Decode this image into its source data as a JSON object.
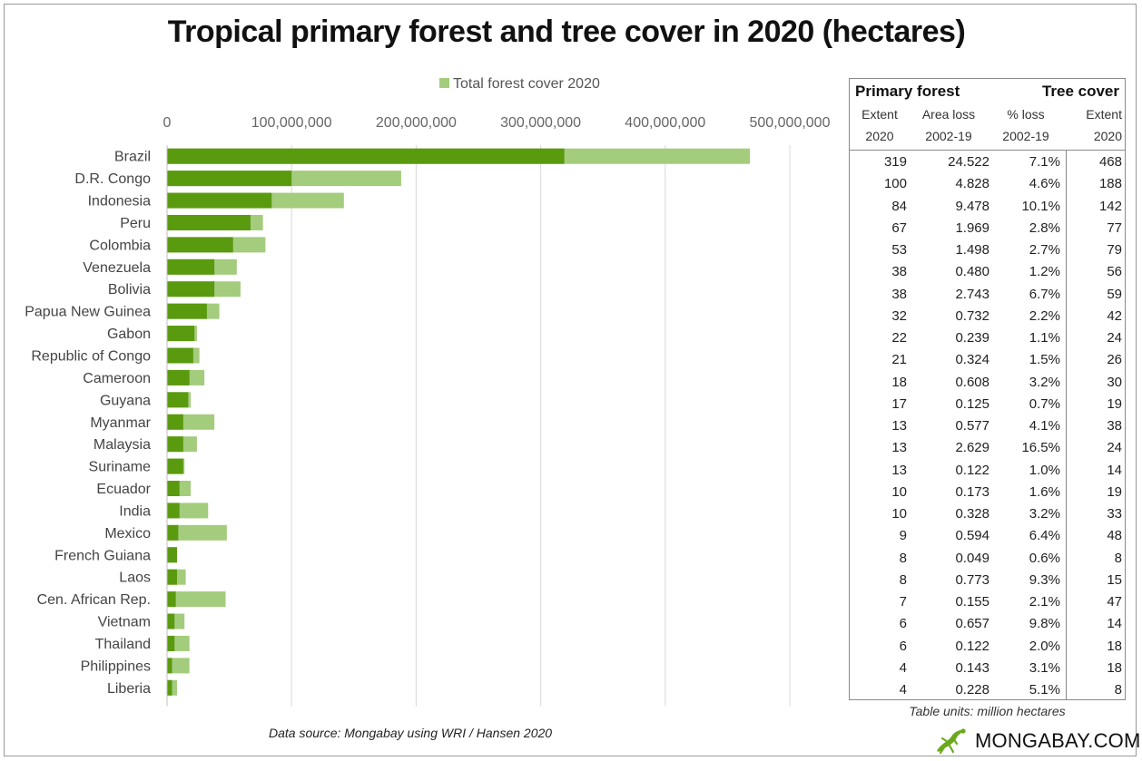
{
  "title": "Tropical primary forest and tree cover in 2020 (hectares)",
  "source": "Data source: Mongabay using WRI / Hansen 2020",
  "logo_text": "MONGABAY.COM",
  "colors": {
    "primary_forest": "#5a9a0f",
    "total_cover": "#a3cc7c",
    "grid": "#d9d9d9"
  },
  "chart_data": {
    "type": "bar",
    "orientation": "horizontal",
    "stacked_overlay": true,
    "legend": {
      "position": "top",
      "entries": [
        "Total forest cover 2020"
      ]
    },
    "xlim": [
      0,
      500000000
    ],
    "xticks": [
      "0",
      "100,000,000",
      "200,000,000",
      "300,000,000",
      "400,000,000",
      "500,000,000"
    ],
    "grid": true,
    "categories": [
      "Brazil",
      "D.R. Congo",
      "Indonesia",
      "Peru",
      "Colombia",
      "Venezuela",
      "Bolivia",
      "Papua New Guinea",
      "Gabon",
      "Republic of Congo",
      "Cameroon",
      "Guyana",
      "Myanmar",
      "Malaysia",
      "Suriname",
      "Ecuador",
      "India",
      "Mexico",
      "French Guiana",
      "Laos",
      "Cen. African Rep.",
      "Vietnam",
      "Thailand",
      "Philippines",
      "Liberia"
    ],
    "series": [
      {
        "values": [
          319000000,
          100000000,
          84000000,
          67000000,
          53000000,
          38000000,
          38000000,
          32000000,
          22000000,
          21000000,
          18000000,
          17000000,
          13000000,
          13000000,
          13000000,
          10000000,
          10000000,
          9000000,
          8000000,
          8000000,
          7000000,
          6000000,
          6000000,
          4000000,
          4000000
        ]
      },
      {
        "name": "Total forest cover 2020",
        "values": [
          468000000,
          188000000,
          142000000,
          77000000,
          79000000,
          56000000,
          59000000,
          42000000,
          24000000,
          26000000,
          30000000,
          19000000,
          38000000,
          24000000,
          14000000,
          19000000,
          33000000,
          48000000,
          8000000,
          15000000,
          47000000,
          14000000,
          18000000,
          18000000,
          8000000
        ]
      }
    ]
  },
  "table": {
    "group_left": "Primary forest",
    "group_right": "Tree cover",
    "headers": [
      {
        "line1": "Extent",
        "line2": "2020"
      },
      {
        "line1": "Area loss",
        "line2": "2002-19"
      },
      {
        "line1": "% loss",
        "line2": "2002-19"
      },
      {
        "line1": "Extent",
        "line2": "2020"
      }
    ],
    "rows": [
      [
        "319",
        "24.522",
        "7.1%",
        "468"
      ],
      [
        "100",
        "4.828",
        "4.6%",
        "188"
      ],
      [
        "84",
        "9.478",
        "10.1%",
        "142"
      ],
      [
        "67",
        "1.969",
        "2.8%",
        "77"
      ],
      [
        "53",
        "1.498",
        "2.7%",
        "79"
      ],
      [
        "38",
        "0.480",
        "1.2%",
        "56"
      ],
      [
        "38",
        "2.743",
        "6.7%",
        "59"
      ],
      [
        "32",
        "0.732",
        "2.2%",
        "42"
      ],
      [
        "22",
        "0.239",
        "1.1%",
        "24"
      ],
      [
        "21",
        "0.324",
        "1.5%",
        "26"
      ],
      [
        "18",
        "0.608",
        "3.2%",
        "30"
      ],
      [
        "17",
        "0.125",
        "0.7%",
        "19"
      ],
      [
        "13",
        "0.577",
        "4.1%",
        "38"
      ],
      [
        "13",
        "2.629",
        "16.5%",
        "24"
      ],
      [
        "13",
        "0.122",
        "1.0%",
        "14"
      ],
      [
        "10",
        "0.173",
        "1.6%",
        "19"
      ],
      [
        "10",
        "0.328",
        "3.2%",
        "33"
      ],
      [
        "9",
        "0.594",
        "6.4%",
        "48"
      ],
      [
        "8",
        "0.049",
        "0.6%",
        "8"
      ],
      [
        "8",
        "0.773",
        "9.3%",
        "15"
      ],
      [
        "7",
        "0.155",
        "2.1%",
        "47"
      ],
      [
        "6",
        "0.657",
        "9.8%",
        "14"
      ],
      [
        "6",
        "0.122",
        "2.0%",
        "18"
      ],
      [
        "4",
        "0.143",
        "3.1%",
        "18"
      ],
      [
        "4",
        "0.228",
        "5.1%",
        "8"
      ]
    ],
    "note": "Table units: million hectares"
  }
}
